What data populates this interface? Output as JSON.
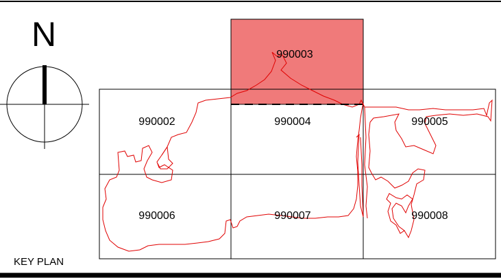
{
  "north_arrow": {
    "letter": "N"
  },
  "plan_title": "KEY PLAN",
  "sheets": [
    {
      "id": "990002",
      "highlighted": false
    },
    {
      "id": "990003",
      "highlighted": true
    },
    {
      "id": "990004",
      "highlighted": false
    },
    {
      "id": "990005",
      "highlighted": false
    },
    {
      "id": "990006",
      "highlighted": false
    },
    {
      "id": "990007",
      "highlighted": false
    },
    {
      "id": "990008",
      "highlighted": false
    }
  ],
  "colors": {
    "highlight_fill": "#f07a7a",
    "boundary_line": "#e00000",
    "grid_line": "#000000"
  }
}
